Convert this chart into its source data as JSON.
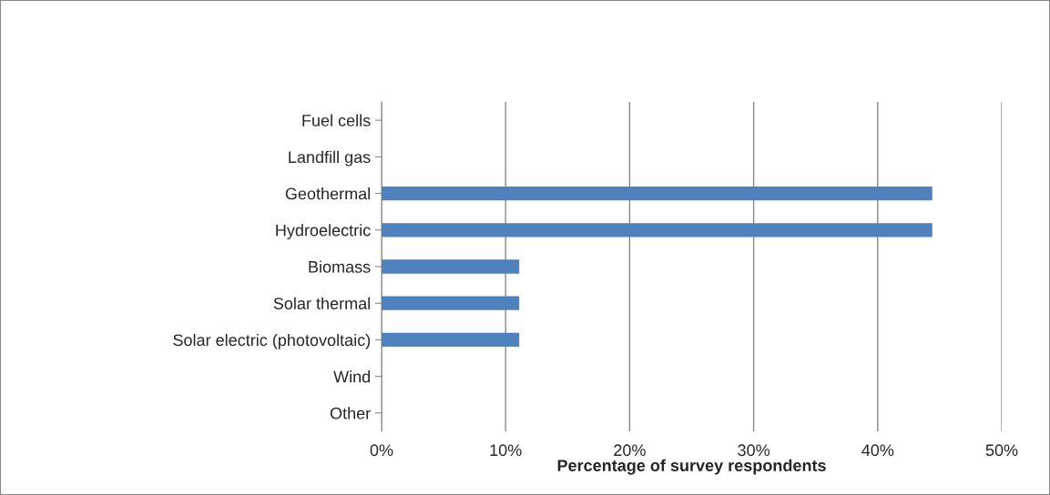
{
  "chart_data": {
    "type": "bar",
    "orientation": "horizontal",
    "xlabel": "Percentage of survey respondents",
    "categories": [
      "Fuel cells",
      "Landfill gas",
      "Geothermal",
      "Hydroelectric",
      "Biomass",
      "Solar thermal",
      "Solar electric (photovoltaic)",
      "Wind",
      "Other"
    ],
    "values": [
      0,
      0,
      44.4,
      44.4,
      11.1,
      11.1,
      11.1,
      0,
      0
    ],
    "color": "#4f81bd",
    "xlim": [
      0,
      50
    ],
    "xticks": [
      {
        "value": 0,
        "label": "0%"
      },
      {
        "value": 10,
        "label": "10%"
      },
      {
        "value": 20,
        "label": "20%"
      },
      {
        "value": 30,
        "label": "30%"
      },
      {
        "value": 40,
        "label": "40%"
      },
      {
        "value": 50,
        "label": "50%"
      }
    ],
    "grid": "x",
    "legend": false
  }
}
